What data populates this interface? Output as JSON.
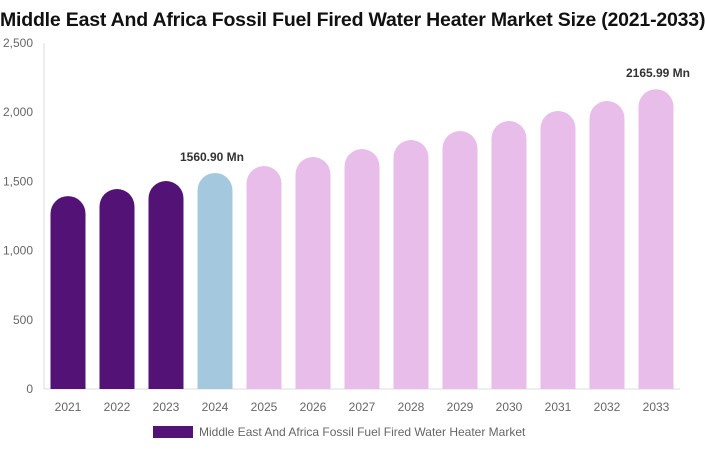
{
  "chart_data": {
    "type": "bar",
    "title": "Middle East And Africa Fossil Fuel Fired Water Heater Market Size (2021-2033)",
    "categories": [
      "2021",
      "2022",
      "2023",
      "2024",
      "2025",
      "2026",
      "2027",
      "2028",
      "2029",
      "2030",
      "2031",
      "2032",
      "2033"
    ],
    "series": [
      {
        "name": "Middle East And Africa Fossil Fuel Fired Water Heater Market",
        "values": [
          1394,
          1445,
          1503,
          1560.9,
          1611,
          1676,
          1734,
          1799,
          1864,
          1936,
          2009,
          2081,
          2165.99
        ]
      }
    ],
    "data_labels": {
      "3": "1560.90 Mn",
      "12": "2165.99 Mn"
    },
    "ylim": [
      0,
      2500
    ],
    "yticks": [
      0,
      500,
      1000,
      1500,
      2000,
      2500
    ],
    "ytick_labels": [
      "0",
      "500",
      "1,000",
      "1,500",
      "2,000",
      "2,500"
    ],
    "grid": false,
    "legend_placement": "bottom",
    "colors": {
      "historical": "#521276",
      "base_year": "#a4c9de",
      "forecast": "#e8bde9"
    },
    "color_by_category": [
      "historical",
      "historical",
      "historical",
      "base_year",
      "forecast",
      "forecast",
      "forecast",
      "forecast",
      "forecast",
      "forecast",
      "forecast",
      "forecast",
      "forecast"
    ]
  }
}
